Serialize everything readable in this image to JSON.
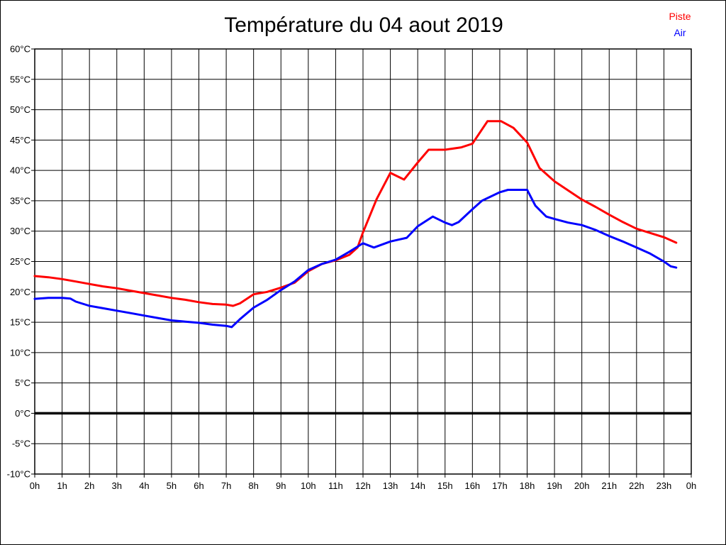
{
  "title": "Température du 04 aout 2019",
  "legend": [
    {
      "label": "Piste",
      "color": "#ff0000"
    },
    {
      "label": "Air",
      "color": "#0000ff"
    }
  ],
  "chart_data": {
    "type": "line",
    "title": "Température du 04 aout 2019",
    "xlabel": "",
    "ylabel": "",
    "x_unit": "hours",
    "xlim": [
      0,
      24
    ],
    "ylim": [
      -10,
      60
    ],
    "grid": true,
    "zero_line": {
      "value": 0,
      "thick": true,
      "color": "#000000"
    },
    "legend_position": "top-right",
    "x_tick_labels": [
      "0h",
      "1h",
      "2h",
      "3h",
      "4h",
      "5h",
      "6h",
      "7h",
      "8h",
      "9h",
      "10h",
      "11h",
      "12h",
      "13h",
      "14h",
      "15h",
      "16h",
      "17h",
      "18h",
      "19h",
      "20h",
      "21h",
      "22h",
      "23h",
      "0h"
    ],
    "y_ticks": [
      60,
      55,
      50,
      45,
      40,
      35,
      30,
      25,
      20,
      15,
      10,
      5,
      0,
      -5,
      -10
    ],
    "y_tick_suffix": "°C",
    "series": [
      {
        "name": "Piste",
        "color": "#ff0000",
        "points": [
          [
            0,
            22.6
          ],
          [
            0.5,
            22.4
          ],
          [
            1,
            22.1
          ],
          [
            1.5,
            21.7
          ],
          [
            2,
            21.3
          ],
          [
            2.5,
            20.9
          ],
          [
            3,
            20.6
          ],
          [
            3.5,
            20.2
          ],
          [
            4,
            19.8
          ],
          [
            4.5,
            19.4
          ],
          [
            5,
            19.0
          ],
          [
            5.5,
            18.7
          ],
          [
            6,
            18.3
          ],
          [
            6.5,
            18.0
          ],
          [
            7,
            17.9
          ],
          [
            7.25,
            17.7
          ],
          [
            7.5,
            18.1
          ],
          [
            8,
            19.6
          ],
          [
            8.5,
            20.0
          ],
          [
            9,
            20.7
          ],
          [
            9.5,
            21.5
          ],
          [
            10,
            23.4
          ],
          [
            10.5,
            24.6
          ],
          [
            11,
            25.2
          ],
          [
            11.5,
            26.1
          ],
          [
            11.8,
            27.3
          ],
          [
            12,
            29.8
          ],
          [
            12.5,
            35.3
          ],
          [
            13,
            39.6
          ],
          [
            13.5,
            38.5
          ],
          [
            14,
            41.3
          ],
          [
            14.4,
            43.4
          ],
          [
            15,
            43.4
          ],
          [
            15.6,
            43.8
          ],
          [
            16,
            44.4
          ],
          [
            16.55,
            48.1
          ],
          [
            17.05,
            48.1
          ],
          [
            17.5,
            47.0
          ],
          [
            18,
            44.6
          ],
          [
            18.45,
            40.4
          ],
          [
            19,
            38.2
          ],
          [
            19.5,
            36.7
          ],
          [
            20,
            35.2
          ],
          [
            20.5,
            34.0
          ],
          [
            21,
            32.7
          ],
          [
            21.5,
            31.5
          ],
          [
            22,
            30.4
          ],
          [
            22.5,
            29.7
          ],
          [
            23,
            29.0
          ],
          [
            23.45,
            28.1
          ]
        ]
      },
      {
        "name": "Air",
        "color": "#0000ff",
        "points": [
          [
            0,
            18.85
          ],
          [
            0.5,
            19.0
          ],
          [
            1,
            19.0
          ],
          [
            1.3,
            18.9
          ],
          [
            1.5,
            18.4
          ],
          [
            2,
            17.7
          ],
          [
            2.5,
            17.3
          ],
          [
            3,
            16.9
          ],
          [
            3.5,
            16.5
          ],
          [
            4,
            16.1
          ],
          [
            4.5,
            15.7
          ],
          [
            5,
            15.3
          ],
          [
            5.5,
            15.1
          ],
          [
            6,
            14.9
          ],
          [
            6.5,
            14.6
          ],
          [
            7,
            14.4
          ],
          [
            7.2,
            14.2
          ],
          [
            7.5,
            15.5
          ],
          [
            8,
            17.4
          ],
          [
            8.5,
            18.7
          ],
          [
            9,
            20.3
          ],
          [
            9.5,
            21.7
          ],
          [
            10,
            23.6
          ],
          [
            10.5,
            24.6
          ],
          [
            11,
            25.3
          ],
          [
            11.5,
            26.6
          ],
          [
            12,
            28.0
          ],
          [
            12.4,
            27.3
          ],
          [
            13,
            28.3
          ],
          [
            13.3,
            28.6
          ],
          [
            13.6,
            28.9
          ],
          [
            14,
            30.8
          ],
          [
            14.55,
            32.4
          ],
          [
            15,
            31.4
          ],
          [
            15.25,
            31.0
          ],
          [
            15.5,
            31.5
          ],
          [
            16,
            33.6
          ],
          [
            16.35,
            35.0
          ],
          [
            17,
            36.4
          ],
          [
            17.3,
            36.8
          ],
          [
            18,
            36.8
          ],
          [
            18.3,
            34.2
          ],
          [
            18.7,
            32.4
          ],
          [
            19,
            32.0
          ],
          [
            19.5,
            31.4
          ],
          [
            20,
            31.0
          ],
          [
            20.5,
            30.2
          ],
          [
            21,
            29.2
          ],
          [
            21.5,
            28.3
          ],
          [
            22,
            27.3
          ],
          [
            22.5,
            26.3
          ],
          [
            23,
            25.0
          ],
          [
            23.25,
            24.2
          ],
          [
            23.45,
            24.0
          ]
        ]
      }
    ]
  }
}
